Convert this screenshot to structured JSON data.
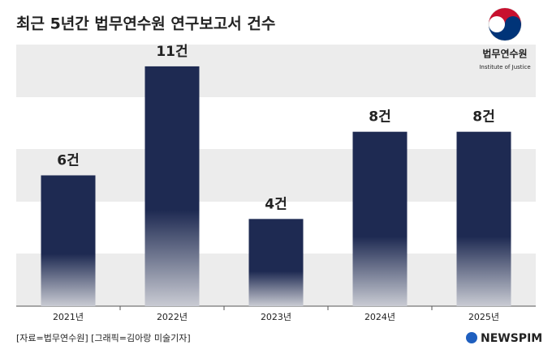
{
  "chart_data": {
    "type": "bar",
    "title": "최근 5년간 법무연수원 연구보고서 건수",
    "categories": [
      "2021년",
      "2022년",
      "2023년",
      "2024년",
      "2025년"
    ],
    "values": [
      6,
      11,
      4,
      8,
      8
    ],
    "value_labels": [
      "6건",
      "11건",
      "4건",
      "8건",
      "8건"
    ],
    "color": "#1e2a52",
    "ylim": [
      0,
      12
    ],
    "logo": {
      "name": "법무연수원",
      "subtitle": "Institute of Justice"
    },
    "source": "[자료=법무연수원] [그래픽=김아랑 미술기자]",
    "brand": "NEWSPIM"
  }
}
